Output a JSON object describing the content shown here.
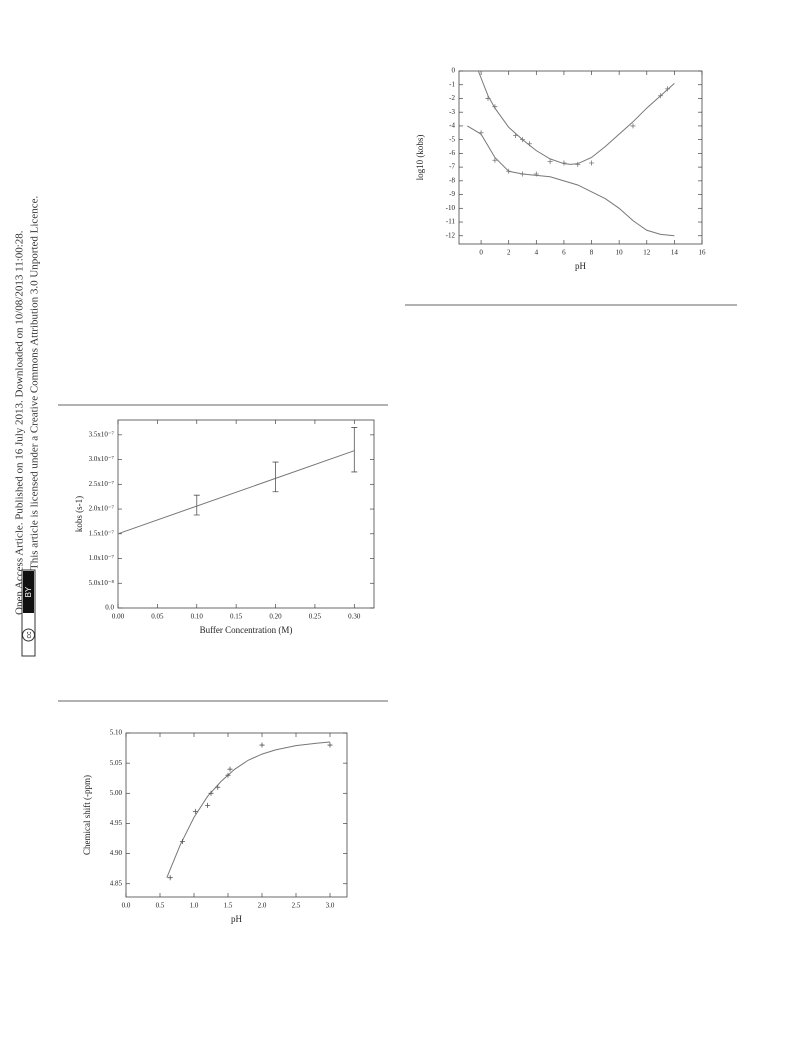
{
  "sidebar": {
    "line1": "Open Access Article. Published on 16 July 2013. Downloaded on 10/08/2013 11:00:28.",
    "line2": "This article is licensed under a Creative Commons Attribution 3.0 Unported Licence.",
    "badge_left": "cc",
    "badge_right": "BY"
  },
  "chart_data": [
    {
      "type": "line",
      "x_label": "pH",
      "y_label": "log10 (kobs)",
      "xlim": [
        -1.6,
        16
      ],
      "ylim": [
        -12.6,
        0
      ],
      "xticks": [
        0,
        2,
        4,
        6,
        8,
        10,
        12,
        14,
        16
      ],
      "yticks": [
        0,
        -1,
        -2,
        -3,
        -4,
        -5,
        -6,
        -7,
        -8,
        -9,
        -10,
        -11,
        -12
      ],
      "series": [
        {
          "style": "line",
          "color": "#777",
          "x": [
            -0.2,
            0.5,
            1,
            2,
            3,
            4,
            5,
            6,
            6.5,
            7,
            8,
            9,
            10,
            11,
            12,
            13,
            14
          ],
          "values": [
            0,
            -1.8,
            -2.7,
            -4.1,
            -5.0,
            -5.8,
            -6.4,
            -6.75,
            -6.8,
            -6.75,
            -6.3,
            -5.5,
            -4.6,
            -3.7,
            -2.7,
            -1.8,
            -0.9
          ]
        },
        {
          "style": "line",
          "color": "#777",
          "x": [
            -1,
            0,
            1,
            2,
            3,
            4,
            5,
            6,
            7,
            8,
            9,
            10,
            11,
            12,
            13,
            14
          ],
          "values": [
            -4,
            -4.6,
            -6.3,
            -7.3,
            -7.5,
            -7.6,
            -7.7,
            -8,
            -8.3,
            -8.8,
            -9.3,
            -10,
            -10.9,
            -11.6,
            -11.9,
            -12
          ]
        },
        {
          "style": "points",
          "color": "#777",
          "x": [
            0.5,
            1,
            2.5,
            3,
            3.5,
            5,
            6,
            7,
            8,
            11,
            13,
            13.5
          ],
          "values": [
            -2,
            -2.6,
            -4.7,
            -5,
            -5.3,
            -6.6,
            -6.7,
            -6.8,
            -6.7,
            -4,
            -1.8,
            -1.3
          ]
        },
        {
          "style": "points",
          "color": "#777",
          "x": [
            0,
            1,
            2,
            3,
            4
          ],
          "values": [
            -4.5,
            -6.5,
            -7.3,
            -7.5,
            -7.5
          ]
        }
      ]
    },
    {
      "type": "line",
      "x_label": "Buffer Concentration (M)",
      "y_label": "kobs (s-1)",
      "xlim": [
        0,
        0.325
      ],
      "ylim": [
        0,
        3.8e-07
      ],
      "xticks": [
        {
          "value": 0,
          "label": "0.00"
        },
        {
          "value": 0.05,
          "label": "0.05"
        },
        {
          "value": 0.1,
          "label": "0.10"
        },
        {
          "value": 0.15,
          "label": "0.15"
        },
        {
          "value": 0.2,
          "label": "0.20"
        },
        {
          "value": 0.25,
          "label": "0.25"
        },
        {
          "value": 0.3,
          "label": "0.30"
        }
      ],
      "yticks": [
        {
          "value": 0,
          "label": "0.0"
        },
        {
          "value": 5e-08,
          "label": "5.0x10⁻⁸"
        },
        {
          "value": 1e-07,
          "label": "1.0x10⁻⁷"
        },
        {
          "value": 1.5e-07,
          "label": "1.5x10⁻⁷"
        },
        {
          "value": 2e-07,
          "label": "2.0x10⁻⁷"
        },
        {
          "value": 2.5e-07,
          "label": "2.5x10⁻⁷"
        },
        {
          "value": 3e-07,
          "label": "3.0x10⁻⁷"
        },
        {
          "value": 3.5e-07,
          "label": "3.5x10⁻⁷"
        }
      ],
      "series": [
        {
          "style": "line",
          "color": "#777",
          "x": [
            0,
            0.3
          ],
          "values": [
            1.5e-07,
            3.18e-07
          ]
        },
        {
          "style": "errorbars",
          "color": "#555",
          "x": [
            0.1,
            0.2,
            0.3
          ],
          "values": [
            2.08e-07,
            2.65e-07,
            3.2e-07
          ],
          "errors": [
            2e-08,
            3e-08,
            4.5e-08
          ]
        }
      ]
    },
    {
      "type": "line",
      "x_label": "pH",
      "y_label": "Chemical shift (-ppm)",
      "xlim": [
        0,
        3.25
      ],
      "ylim": [
        4.828,
        5.1
      ],
      "xticks": [
        {
          "value": 0,
          "label": "0.0"
        },
        0.5,
        {
          "value": 1,
          "label": "1.0"
        },
        1.5,
        {
          "value": 2,
          "label": "2.0"
        },
        2.5,
        {
          "value": 3,
          "label": "3.0"
        }
      ],
      "yticks": [
        4.85,
        {
          "value": 4.9,
          "label": "4.90"
        },
        4.95,
        {
          "value": 5,
          "label": "5.00"
        },
        5.05,
        {
          "value": 5.1,
          "label": "5.10"
        }
      ],
      "series": [
        {
          "style": "line",
          "color": "#777",
          "x": [
            0.6,
            0.8,
            1,
            1.2,
            1.4,
            1.6,
            1.8,
            2,
            2.2,
            2.5,
            2.8,
            3
          ],
          "values": [
            4.86,
            4.915,
            4.96,
            4.995,
            5.02,
            5.04,
            5.055,
            5.065,
            5.072,
            5.079,
            5.083,
            5.085
          ]
        },
        {
          "style": "points",
          "color": "#555",
          "x": [
            0.65,
            0.83,
            1.02,
            1.2,
            1.25,
            1.35,
            1.5,
            1.53,
            2,
            3
          ],
          "values": [
            4.86,
            4.92,
            4.97,
            4.98,
            5,
            5.01,
            5.03,
            5.04,
            5.08,
            5.08
          ]
        }
      ]
    }
  ]
}
